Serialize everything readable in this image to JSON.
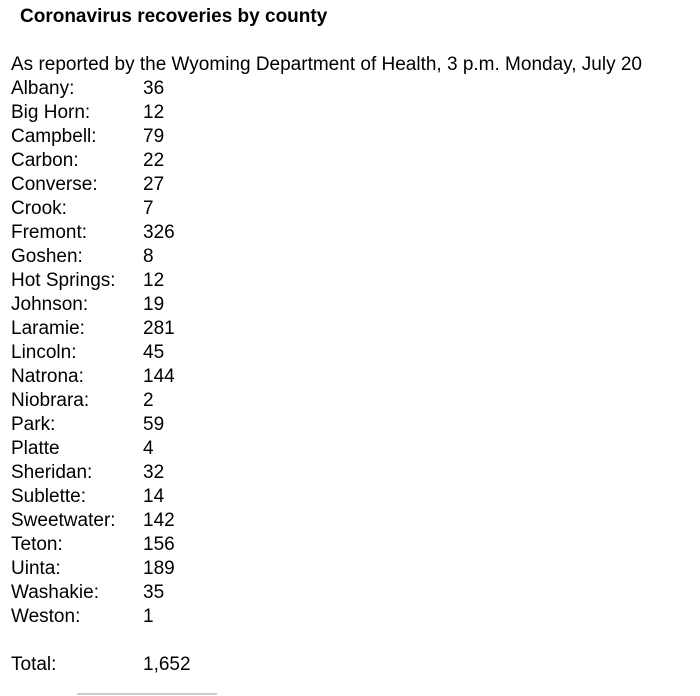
{
  "page": {
    "title": "Coronavirus recoveries by county",
    "subtitle": "As reported by the Wyoming Department of Health, 3 p.m. Monday, July 20"
  },
  "counties": [
    {
      "label": "Albany:",
      "value": "36"
    },
    {
      "label": "Big Horn:",
      "value": "12"
    },
    {
      "label": "Campbell:",
      "value": "79"
    },
    {
      "label": "Carbon:",
      "value": "22"
    },
    {
      "label": "Converse:",
      "value": "27"
    },
    {
      "label": "Crook:",
      "value": "7"
    },
    {
      "label": "Fremont:",
      "value": "326"
    },
    {
      "label": "Goshen:",
      "value": "8"
    },
    {
      "label": "Hot Springs:",
      "value": "12"
    },
    {
      "label": "Johnson:",
      "value": "19"
    },
    {
      "label": "Laramie:",
      "value": "281"
    },
    {
      "label": "Lincoln:",
      "value": "45"
    },
    {
      "label": "Natrona:",
      "value": "144"
    },
    {
      "label": "Niobrara:",
      "value": "2"
    },
    {
      "label": "Park:",
      "value": "59"
    },
    {
      "label": "Platte",
      "value": "4"
    },
    {
      "label": "Sheridan:",
      "value": "32"
    },
    {
      "label": "Sublette:",
      "value": "14"
    },
    {
      "label": "Sweetwater:",
      "value": "142"
    },
    {
      "label": "Teton:",
      "value": "156"
    },
    {
      "label": "Uinta:",
      "value": "189"
    },
    {
      "label": "Washakie:",
      "value": "35"
    },
    {
      "label": "Weston:",
      "value": "1"
    }
  ],
  "total": {
    "label": "Total:",
    "value": "1,652"
  },
  "colors": {
    "text": "#000000",
    "background": "#ffffff",
    "divider": "#cccccc"
  }
}
